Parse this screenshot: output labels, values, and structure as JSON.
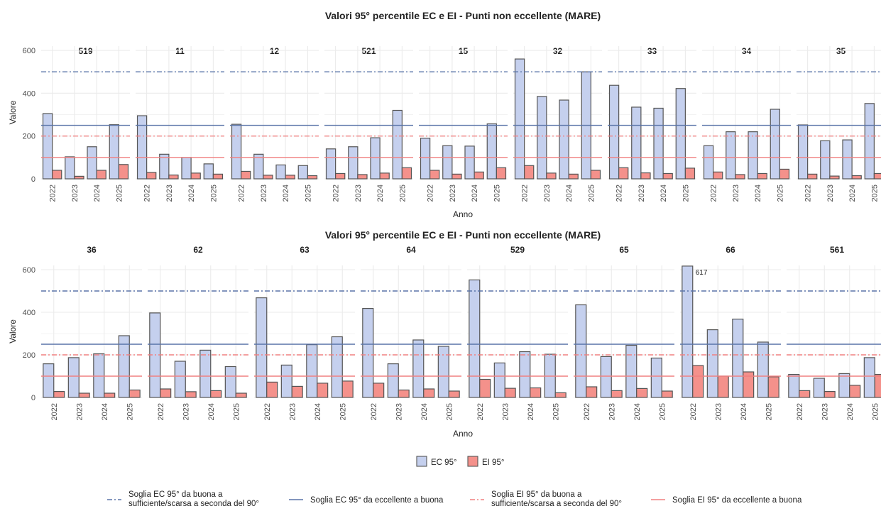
{
  "colors": {
    "ec_fill": "#c5d0ee",
    "ei_fill": "#f4918b",
    "bar_stroke": "#555555",
    "ec_line": "#5a74a8",
    "ei_line": "#f08080",
    "grid": "#ebebeb"
  },
  "legend": {
    "bars": [
      {
        "key": "ec",
        "label": "EC 95°"
      },
      {
        "key": "ei",
        "label": "EI 95°"
      }
    ],
    "lines": [
      {
        "key": "ec_dash",
        "label1": "Soglia EC 95° da buona a",
        "label2": "sufficiente/scarsa a seconda del 90°"
      },
      {
        "key": "ec_solid",
        "label1": "Soglia EC 95° da eccellente a buona",
        "label2": ""
      },
      {
        "key": "ei_dash",
        "label1": "Soglia EI 95° da buona a",
        "label2": "sufficiente/scarsa a seconda del 90°"
      },
      {
        "key": "ei_solid",
        "label1": "Soglia EI 95° da eccellente a buona",
        "label2": ""
      }
    ]
  },
  "chart_data": [
    {
      "type": "bar",
      "title": "Valori 95° percentile EC e EI - Punti non eccellente (MARE)",
      "xlabel": "Anno",
      "ylabel": "Valore",
      "ylim": [
        0,
        620
      ],
      "yticks": [
        0,
        200,
        400,
        600
      ],
      "categories": [
        "2022",
        "2023",
        "2024",
        "2025"
      ],
      "thresholds": {
        "ec_dash": 500,
        "ec_solid": 250,
        "ei_dash": 200,
        "ei_solid": 100
      },
      "panels": [
        {
          "name": "519",
          "ec": [
            305,
            103,
            150,
            253
          ],
          "ei": [
            40,
            12,
            40,
            67
          ]
        },
        {
          "name": "11",
          "ec": [
            295,
            115,
            100,
            70
          ],
          "ei": [
            30,
            18,
            27,
            22
          ]
        },
        {
          "name": "12",
          "ec": [
            255,
            115,
            65,
            62
          ],
          "ei": [
            35,
            17,
            17,
            15
          ]
        },
        {
          "name": "521",
          "ec": [
            140,
            150,
            192,
            320
          ],
          "ei": [
            25,
            20,
            27,
            52
          ]
        },
        {
          "name": "15",
          "ec": [
            190,
            155,
            153,
            257
          ],
          "ei": [
            40,
            22,
            32,
            52
          ]
        },
        {
          "name": "32",
          "ec": [
            560,
            385,
            368,
            500
          ],
          "ei": [
            62,
            27,
            22,
            40
          ]
        },
        {
          "name": "33",
          "ec": [
            437,
            335,
            330,
            422
          ],
          "ei": [
            52,
            28,
            25,
            50
          ]
        },
        {
          "name": "34",
          "ec": [
            155,
            220,
            220,
            325
          ],
          "ei": [
            32,
            20,
            25,
            45
          ]
        },
        {
          "name": "35",
          "ec": [
            252,
            178,
            182,
            352
          ],
          "ei": [
            22,
            13,
            15,
            25
          ]
        }
      ]
    },
    {
      "type": "bar",
      "title": "Valori 95° percentile EC e EI - Punti non eccellente (MARE)",
      "xlabel": "Anno",
      "ylabel": "Valore",
      "ylim": [
        0,
        620
      ],
      "yticks": [
        0,
        200,
        400,
        600
      ],
      "categories": [
        "2022",
        "2023",
        "2024",
        "2025"
      ],
      "thresholds": {
        "ec_dash": 500,
        "ec_solid": 250,
        "ei_dash": 200,
        "ei_solid": 100
      },
      "panels": [
        {
          "name": "36",
          "ec": [
            158,
            187,
            205,
            290
          ],
          "ei": [
            28,
            20,
            20,
            35
          ]
        },
        {
          "name": "62",
          "ec": [
            397,
            170,
            222,
            145
          ],
          "ei": [
            40,
            27,
            32,
            20
          ]
        },
        {
          "name": "63",
          "ec": [
            468,
            152,
            248,
            285
          ],
          "ei": [
            72,
            52,
            67,
            77
          ]
        },
        {
          "name": "64",
          "ec": [
            418,
            158,
            270,
            240
          ],
          "ei": [
            67,
            35,
            40,
            30
          ]
        },
        {
          "name": "529",
          "ec": [
            552,
            162,
            215,
            203
          ],
          "ei": [
            85,
            43,
            45,
            22
          ]
        },
        {
          "name": "65",
          "ec": [
            435,
            192,
            245,
            185
          ],
          "ei": [
            50,
            32,
            42,
            30
          ]
        },
        {
          "name": "66",
          "ec": [
            617,
            318,
            368,
            260
          ],
          "ei": [
            150,
            100,
            120,
            97
          ],
          "annotation": "617"
        },
        {
          "name": "561",
          "ec": [
            108,
            90,
            112,
            187
          ],
          "ei": [
            32,
            28,
            57,
            108
          ]
        }
      ]
    }
  ]
}
